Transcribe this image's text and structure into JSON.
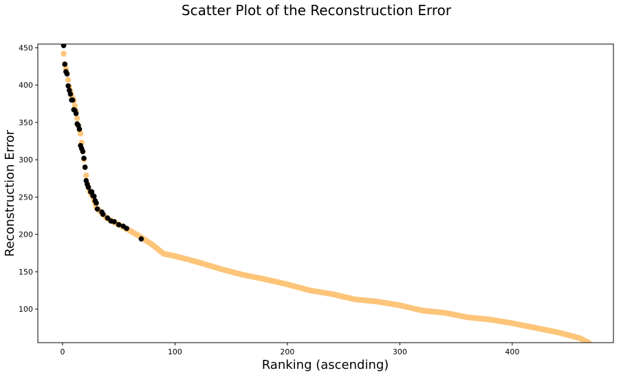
{
  "chart_data": {
    "type": "scatter",
    "title": "Scatter Plot of the Reconstruction Error",
    "xlabel": "Ranking (ascending)",
    "ylabel": "Reconstruction Error",
    "xlim": [
      -22,
      490
    ],
    "ylim": [
      55,
      455
    ],
    "x_ticks": [
      0,
      100,
      200,
      300,
      400
    ],
    "y_ticks": [
      100,
      150,
      200,
      250,
      300,
      350,
      400,
      450
    ],
    "grid": false,
    "legend": "none",
    "colors": {
      "dark_points": "#000000",
      "light_points": "#fdc57a"
    },
    "curve_anchors": [
      [
        0,
        456
      ],
      [
        2,
        428
      ],
      [
        4,
        416
      ],
      [
        6,
        398
      ],
      [
        8,
        386
      ],
      [
        10,
        379
      ],
      [
        12,
        365
      ],
      [
        14,
        346
      ],
      [
        16,
        335
      ],
      [
        18,
        311
      ],
      [
        20,
        290
      ],
      [
        22,
        268
      ],
      [
        24,
        258
      ],
      [
        27,
        250
      ],
      [
        30,
        236
      ],
      [
        35,
        228
      ],
      [
        40,
        221
      ],
      [
        50,
        213
      ],
      [
        60,
        205
      ],
      [
        70,
        196
      ],
      [
        80,
        186
      ],
      [
        90,
        174
      ],
      [
        100,
        171
      ],
      [
        120,
        163
      ],
      [
        140,
        154
      ],
      [
        160,
        146
      ],
      [
        180,
        140
      ],
      [
        200,
        133
      ],
      [
        220,
        125
      ],
      [
        240,
        120
      ],
      [
        260,
        113
      ],
      [
        280,
        110
      ],
      [
        300,
        105
      ],
      [
        320,
        98
      ],
      [
        340,
        95
      ],
      [
        360,
        89
      ],
      [
        380,
        86
      ],
      [
        400,
        81
      ],
      [
        420,
        75
      ],
      [
        440,
        69
      ],
      [
        460,
        61
      ],
      [
        468,
        55
      ]
    ],
    "dark_points": [
      [
        1,
        453
      ],
      [
        2,
        428
      ],
      [
        3,
        418
      ],
      [
        4,
        415
      ],
      [
        5,
        399
      ],
      [
        6,
        393
      ],
      [
        7,
        388
      ],
      [
        8,
        380
      ],
      [
        9,
        380
      ],
      [
        10,
        367
      ],
      [
        11,
        366
      ],
      [
        12,
        362
      ],
      [
        13,
        348
      ],
      [
        14,
        346
      ],
      [
        15,
        341
      ],
      [
        16,
        319
      ],
      [
        17,
        315
      ],
      [
        18,
        311
      ],
      [
        19,
        302
      ],
      [
        20,
        290
      ],
      [
        21,
        272
      ],
      [
        22,
        267
      ],
      [
        23,
        263
      ],
      [
        25,
        257
      ],
      [
        26,
        257
      ],
      [
        27,
        252
      ],
      [
        28,
        251
      ],
      [
        29,
        245
      ],
      [
        30,
        242
      ],
      [
        31,
        234
      ],
      [
        35,
        230
      ],
      [
        36,
        227
      ],
      [
        40,
        222
      ],
      [
        43,
        218
      ],
      [
        46,
        217
      ],
      [
        50,
        213
      ],
      [
        54,
        211
      ],
      [
        57,
        208
      ],
      [
        70,
        194
      ]
    ],
    "light_point_count": 469
  }
}
